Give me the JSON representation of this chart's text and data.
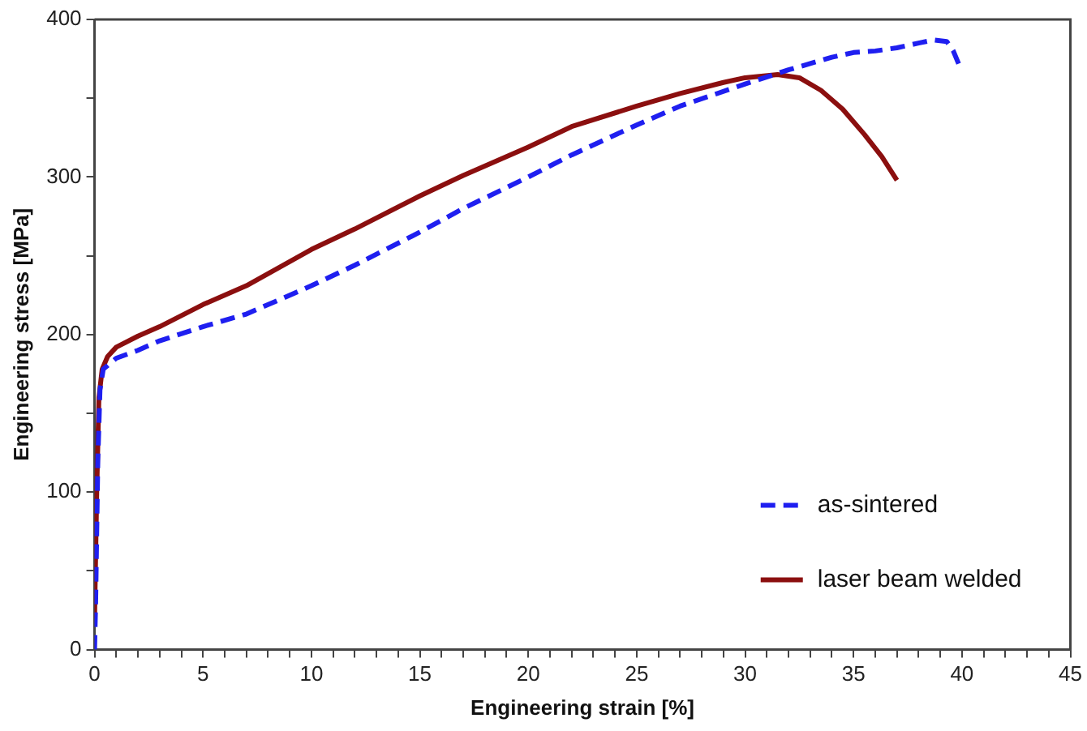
{
  "chart_data": {
    "type": "line",
    "xlabel": "Engineering strain [%]",
    "ylabel": "Engineering stress [MPa]",
    "xlim": [
      0,
      45
    ],
    "ylim": [
      0,
      400
    ],
    "xticks": [
      0,
      {
        "value": 1,
        "label": null
      },
      {
        "value": 2,
        "label": null
      },
      {
        "value": 3,
        "label": null
      },
      {
        "value": 4,
        "label": null
      },
      5,
      {
        "value": 6,
        "label": null
      },
      {
        "value": 7,
        "label": null
      },
      {
        "value": 8,
        "label": null
      },
      {
        "value": 9,
        "label": null
      },
      10,
      {
        "value": 11,
        "label": null
      },
      {
        "value": 12,
        "label": null
      },
      {
        "value": 13,
        "label": null
      },
      {
        "value": 14,
        "label": null
      },
      15,
      {
        "value": 16,
        "label": null
      },
      {
        "value": 17,
        "label": null
      },
      {
        "value": 18,
        "label": null
      },
      {
        "value": 19,
        "label": null
      },
      20,
      {
        "value": 21,
        "label": null
      },
      {
        "value": 22,
        "label": null
      },
      {
        "value": 23,
        "label": null
      },
      {
        "value": 24,
        "label": null
      },
      25,
      {
        "value": 26,
        "label": null
      },
      {
        "value": 27,
        "label": null
      },
      {
        "value": 28,
        "label": null
      },
      {
        "value": 29,
        "label": null
      },
      30,
      {
        "value": 31,
        "label": null
      },
      {
        "value": 32,
        "label": null
      },
      {
        "value": 33,
        "label": null
      },
      {
        "value": 34,
        "label": null
      },
      35,
      {
        "value": 36,
        "label": null
      },
      {
        "value": 37,
        "label": null
      },
      {
        "value": 38,
        "label": null
      },
      {
        "value": 39,
        "label": null
      },
      40,
      {
        "value": 41,
        "label": null
      },
      {
        "value": 42,
        "label": null
      },
      {
        "value": 43,
        "label": null
      },
      {
        "value": 44,
        "label": null
      },
      45
    ],
    "yticks": [
      0,
      {
        "value": 50,
        "label": null
      },
      100,
      {
        "value": 150,
        "label": null
      },
      200,
      {
        "value": 250,
        "label": null
      },
      300,
      {
        "value": 350,
        "label": null
      },
      400
    ],
    "grid": false,
    "legend": "bottom right",
    "marker": "none",
    "series": [
      {
        "name": "as-sintered",
        "color": "#1f1ff0",
        "line_style": "dashed",
        "x": [
          0,
          0.05,
          0.15,
          0.25,
          0.4,
          1,
          2,
          3,
          5,
          7,
          10,
          12,
          15,
          17,
          20,
          22,
          25,
          27,
          30,
          32,
          34,
          35,
          36,
          37,
          38,
          38.7,
          39.3,
          39.6,
          39.9
        ],
        "values": [
          0,
          30,
          120,
          165,
          178,
          185,
          190,
          196,
          205,
          213,
          231,
          244,
          265,
          280,
          300,
          314,
          333,
          345,
          359,
          368,
          376,
          379,
          380,
          382,
          385,
          387,
          386,
          380,
          370
        ]
      },
      {
        "name": "laser beam welded",
        "color": "#8b0f0f",
        "line_style": "solid",
        "x": [
          0,
          0.1,
          0.2,
          0.35,
          0.6,
          1,
          2,
          3,
          5,
          7,
          10,
          12,
          15,
          17,
          20,
          22,
          25,
          27,
          29,
          30,
          31.5,
          32.5,
          33.5,
          34.5,
          35.5,
          36.3,
          37
        ],
        "values": [
          20,
          100,
          160,
          178,
          186,
          192,
          199,
          205,
          219,
          231,
          254,
          267,
          288,
          301,
          319,
          332,
          345,
          353,
          360,
          363,
          365,
          363,
          355,
          343,
          327,
          313,
          298
        ]
      }
    ]
  }
}
